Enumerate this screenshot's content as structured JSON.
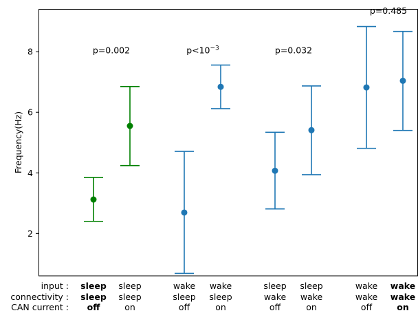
{
  "chart_data": {
    "type": "errorbar",
    "ylabel": "Frequency(Hz)",
    "ylim": [
      0.6,
      9.4
    ],
    "yticks": [
      2,
      4,
      6,
      8
    ],
    "row_labels": [
      "input :",
      "connectivity :",
      "CAN current :"
    ],
    "conditions": [
      {
        "input": "sleep",
        "connectivity": "sleep",
        "can": "off",
        "bold": true,
        "mean": 3.12,
        "lower": 2.4,
        "upper": 3.85,
        "color": "#008000"
      },
      {
        "input": "sleep",
        "connectivity": "sleep",
        "can": "on",
        "bold": false,
        "mean": 5.55,
        "lower": 4.24,
        "upper": 6.85,
        "color": "#008000"
      },
      {
        "input": "wake",
        "connectivity": "sleep",
        "can": "off",
        "bold": false,
        "mean": 2.69,
        "lower": 0.68,
        "upper": 4.71,
        "color": "#1f77b4"
      },
      {
        "input": "wake",
        "connectivity": "sleep",
        "can": "on",
        "bold": false,
        "mean": 6.84,
        "lower": 6.12,
        "upper": 7.56,
        "color": "#1f77b4"
      },
      {
        "input": "sleep",
        "connectivity": "wake",
        "can": "off",
        "bold": false,
        "mean": 4.07,
        "lower": 2.81,
        "upper": 5.34,
        "color": "#1f77b4"
      },
      {
        "input": "sleep",
        "connectivity": "wake",
        "can": "on",
        "bold": false,
        "mean": 5.41,
        "lower": 3.94,
        "upper": 6.87,
        "color": "#1f77b4"
      },
      {
        "input": "wake",
        "connectivity": "wake",
        "can": "off",
        "bold": false,
        "mean": 6.82,
        "lower": 4.81,
        "upper": 8.83,
        "color": "#1f77b4"
      },
      {
        "input": "wake",
        "connectivity": "wake",
        "can": "on",
        "bold": true,
        "mean": 7.04,
        "lower": 5.4,
        "upper": 8.67,
        "color": "#1f77b4"
      }
    ],
    "annotations": [
      {
        "text": "p=0.002",
        "y": 8.05
      },
      {
        "text": "p<10",
        "sup": "−3",
        "y": 8.05
      },
      {
        "text": "p=0.032",
        "y": 8.05
      },
      {
        "text": "p=0.485",
        "y": 9.35
      }
    ]
  }
}
